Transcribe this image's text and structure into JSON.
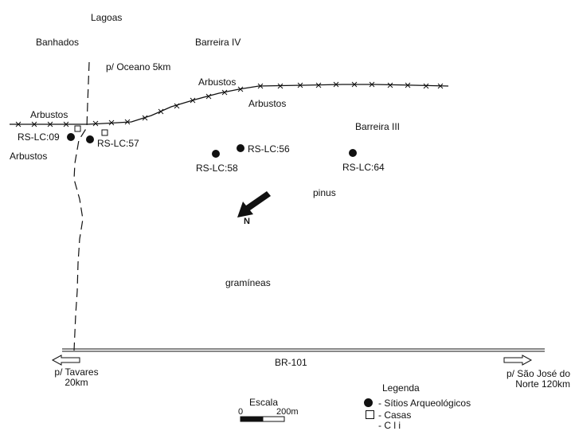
{
  "labels": {
    "lagoas": "Lagoas",
    "banhados": "Banhados",
    "oceano": "p/ Oceano 5km",
    "barreira_iv": "Barreira IV",
    "arbustos_1": "Arbustos",
    "arbustos_2": "Arbustos",
    "arbustos_3": "Arbustos",
    "arbustos_4": "Arbustos",
    "barreira_iii": "Barreira III",
    "pinus": "pinus",
    "gramineas": "gramíneas",
    "north": "N",
    "road": "BR-101",
    "tavares_line1": "p/ Tavares",
    "tavares_line2": "20km",
    "sao_jose_line1": "p/ São José do",
    "sao_jose_line2": "Norte 120km"
  },
  "sites": [
    {
      "id": "rs-lc-09",
      "label": "RS-LC:09"
    },
    {
      "id": "rs-lc-57",
      "label": "RS-LC:57"
    },
    {
      "id": "rs-lc-56",
      "label": "RS-LC:56"
    },
    {
      "id": "rs-lc-58",
      "label": "RS-LC:58"
    },
    {
      "id": "rs-lc-64",
      "label": "RS-LC:64"
    }
  ],
  "scale": {
    "title": "Escala",
    "start": "0",
    "end": "200m"
  },
  "legend": {
    "title": "Legenda",
    "sites": "- Sítios Arqueológicos",
    "houses": "- Casas",
    "truncated": "- C  l  i  "
  },
  "colors": {
    "ink": "#111111",
    "background": "#ffffff"
  }
}
